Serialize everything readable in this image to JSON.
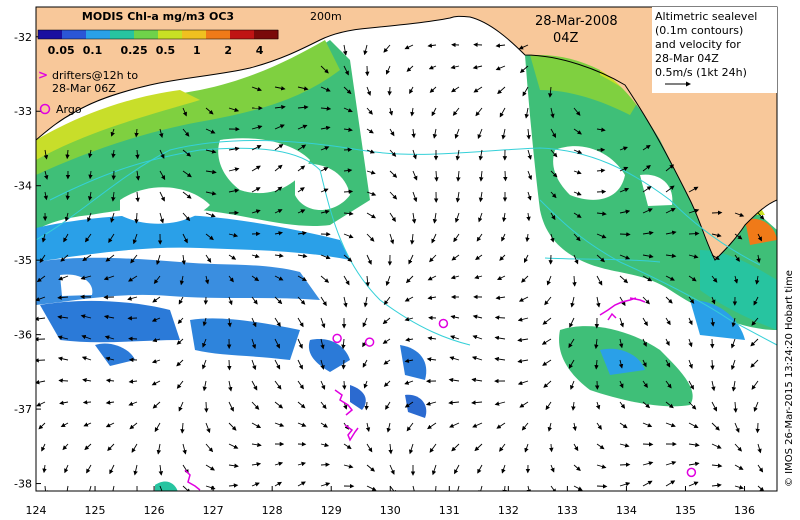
{
  "legend": {
    "title": "MODIS Chl-a mg/m3 OC3",
    "ticks": [
      "0.05",
      "0.1",
      "0.25",
      "0.5",
      "1",
      "2",
      "4"
    ],
    "colors": [
      "#1a0fa0",
      "#2b56d6",
      "#2aa0e8",
      "#27c4a0",
      "#6fd24a",
      "#c8e024",
      "#f0c020",
      "#f07a18",
      "#c01414",
      "#7a0a0a"
    ]
  },
  "contour_label": "200m",
  "date": "28-Mar-2008",
  "time": "04Z",
  "altimetry_note": [
    "Altimetric sealevel",
    "(0.1m contours)",
    "and velocity for",
    "28-Mar 04Z",
    "0.5m/s (1kt 24h)"
  ],
  "drifters_note": [
    "drifters@12h to",
    "28-Mar 06Z"
  ],
  "argo_label": "Argo",
  "credit": "© IMOS 26-Mar-2015 13:24:20 Hobart time",
  "x_axis": {
    "ticks": [
      "124",
      "125",
      "126",
      "127",
      "128",
      "129",
      "130",
      "131",
      "132",
      "133",
      "134",
      "135",
      "136"
    ]
  },
  "y_axis": {
    "ticks": [
      "-32",
      "-33",
      "-34",
      "-35",
      "-36",
      "-37",
      "-38"
    ]
  },
  "colors": {
    "land": "#f8c89a",
    "contour": "#35d0d8",
    "marker": "#e000e0"
  },
  "argo_floats": [
    {
      "lon": 129.1,
      "lat": -36.05
    },
    {
      "lon": 129.65,
      "lat": -36.1
    },
    {
      "lon": 130.9,
      "lat": -35.85
    },
    {
      "lon": 135.1,
      "lat": -37.85
    }
  ]
}
